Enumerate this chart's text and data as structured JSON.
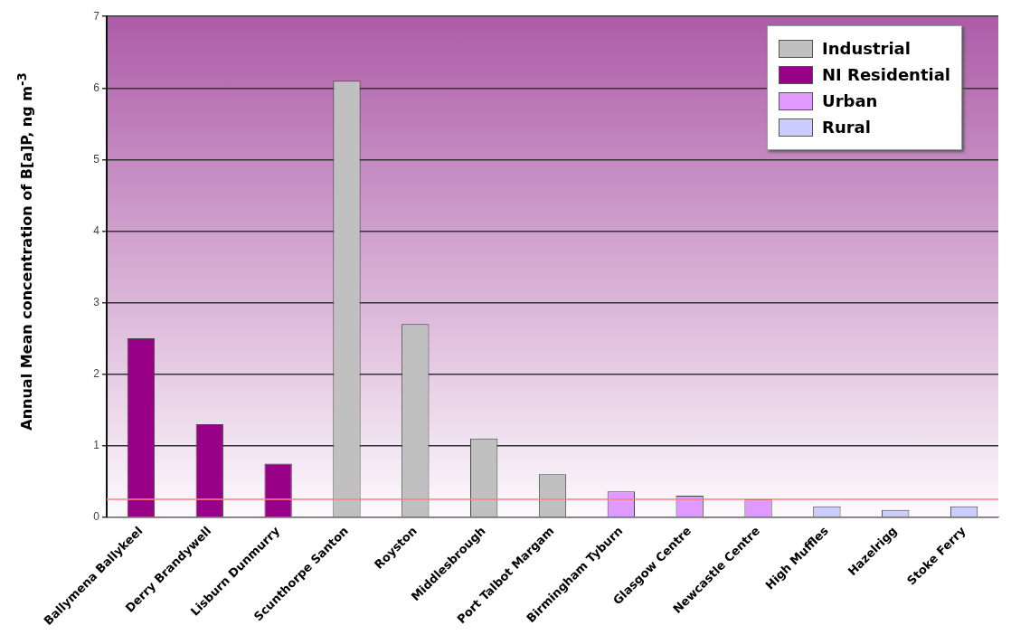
{
  "chart_data": {
    "type": "bar",
    "ylabel": "Annual Mean concentration of B[a]P, ng m$^{-3}$",
    "categories": [
      "Ballymena Ballykeel",
      "Derry Brandywell",
      "Lisburn Dunmurry",
      "Scunthorpe Santon",
      "Royston",
      "Middlesbrough",
      "Port Talbot Margam",
      "Birmingham Tyburn",
      "Glasgow Centre",
      "Newcastle Centre",
      "High Muffles",
      "Hazelrigg",
      "Stoke Ferry"
    ],
    "series": [
      {
        "name": "Industrial",
        "color": "#c0c0c0",
        "values": [
          null,
          null,
          null,
          6.1,
          2.7,
          1.1,
          0.6,
          null,
          null,
          null,
          null,
          null,
          null
        ]
      },
      {
        "name": "NI Residential",
        "color": "#990088",
        "values": [
          2.5,
          1.3,
          0.75,
          null,
          null,
          null,
          null,
          null,
          null,
          null,
          null,
          null,
          null
        ]
      },
      {
        "name": "Urban",
        "color": "#e099ff",
        "values": [
          null,
          null,
          null,
          null,
          null,
          null,
          null,
          0.36,
          0.3,
          0.25,
          null,
          null,
          null
        ]
      },
      {
        "name": "Rural",
        "color": "#ccccff",
        "values": [
          null,
          null,
          null,
          null,
          null,
          null,
          null,
          null,
          null,
          null,
          0.15,
          0.1,
          0.15
        ]
      }
    ],
    "ylim": [
      0,
      7
    ],
    "yticks": [
      0,
      1,
      2,
      3,
      4,
      5,
      6,
      7
    ],
    "grid": "y",
    "legend": "top right",
    "ref_lines": [
      {
        "axis": "y",
        "value": 0.25,
        "color": "#ff8080"
      }
    ]
  }
}
